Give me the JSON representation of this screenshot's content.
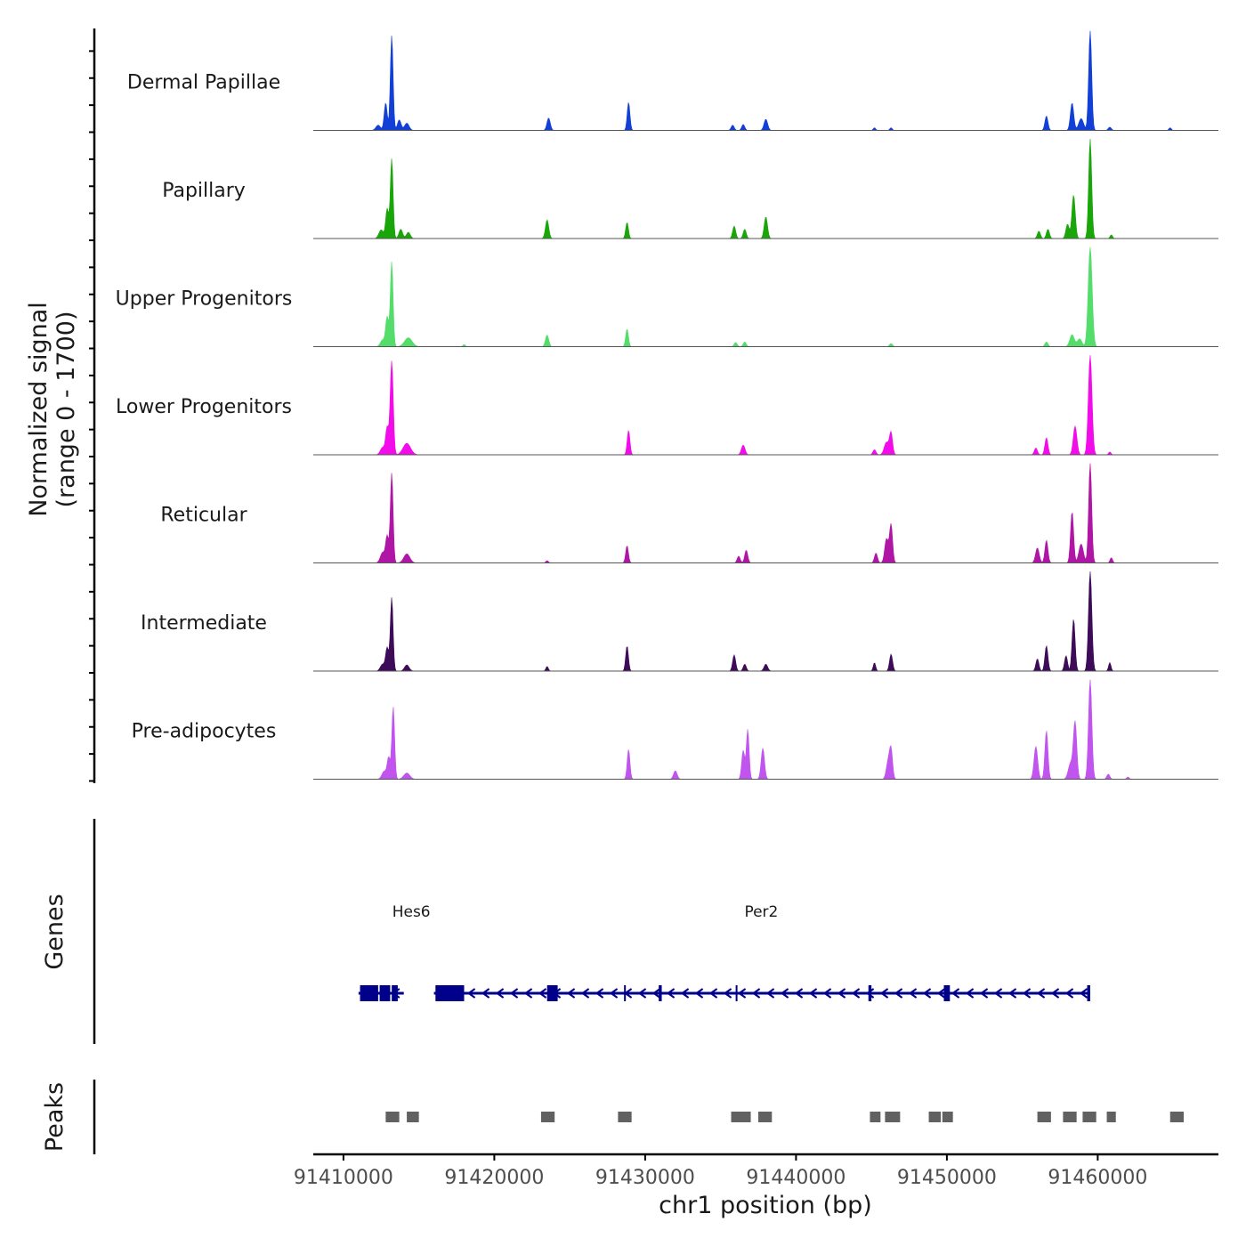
{
  "chart_data": {
    "type": "area",
    "title": "",
    "ylabel_line1": "Normalized signal",
    "ylabel_line2": "(range 0 - 1700)",
    "ylim": [
      0,
      1700
    ],
    "xlabel": "chr1 position (bp)",
    "xlim": [
      91408000,
      91468000
    ],
    "x_ticks": [
      91410000,
      91420000,
      91430000,
      91440000,
      91450000,
      91460000
    ],
    "x_tick_labels": [
      "91410000",
      "91420000",
      "91430000",
      "91440000",
      "91450000",
      "91460000"
    ],
    "tracks": [
      {
        "name": "Dermal Papillae",
        "color": "#1240D6",
        "peaks": [
          [
            91412300,
            80,
            150
          ],
          [
            91412800,
            420,
            100
          ],
          [
            91413200,
            1450,
            90
          ],
          [
            91413700,
            160,
            120
          ],
          [
            91414200,
            110,
            150
          ],
          [
            91423600,
            190,
            110
          ],
          [
            91428900,
            430,
            90
          ],
          [
            91435800,
            80,
            100
          ],
          [
            91436500,
            90,
            100
          ],
          [
            91438000,
            170,
            120
          ],
          [
            91445200,
            40,
            80
          ],
          [
            91446300,
            40,
            80
          ],
          [
            91456600,
            220,
            100
          ],
          [
            91458300,
            420,
            110
          ],
          [
            91458900,
            180,
            160
          ],
          [
            91459500,
            1520,
            100
          ],
          [
            91460800,
            50,
            100
          ],
          [
            91464800,
            40,
            80
          ]
        ]
      },
      {
        "name": "Papillary",
        "color": "#1AA50B",
        "peaks": [
          [
            91412500,
            140,
            150
          ],
          [
            91412900,
            480,
            100
          ],
          [
            91413200,
            1280,
            90
          ],
          [
            91413800,
            150,
            120
          ],
          [
            91414300,
            100,
            130
          ],
          [
            91423500,
            300,
            110
          ],
          [
            91428800,
            260,
            90
          ],
          [
            91435900,
            200,
            100
          ],
          [
            91436600,
            150,
            100
          ],
          [
            91438000,
            350,
            110
          ],
          [
            91456100,
            120,
            100
          ],
          [
            91456700,
            150,
            100
          ],
          [
            91458000,
            230,
            110
          ],
          [
            91458400,
            700,
            110
          ],
          [
            91459500,
            1600,
            100
          ],
          [
            91460900,
            60,
            80
          ]
        ]
      },
      {
        "name": "Upper Progenitors",
        "color": "#55DD6B",
        "peaks": [
          [
            91412600,
            130,
            150
          ],
          [
            91412900,
            560,
            100
          ],
          [
            91413200,
            1620,
            90
          ],
          [
            91414300,
            170,
            250
          ],
          [
            91418000,
            40,
            80
          ],
          [
            91423500,
            220,
            110
          ],
          [
            91428800,
            340,
            90
          ],
          [
            91436000,
            80,
            100
          ],
          [
            91436600,
            90,
            100
          ],
          [
            91446300,
            60,
            100
          ],
          [
            91456600,
            90,
            100
          ],
          [
            91458300,
            230,
            150
          ],
          [
            91458800,
            150,
            150
          ],
          [
            91459500,
            1900,
            130
          ]
        ]
      },
      {
        "name": "Lower Progenitors",
        "color": "#F20CEA",
        "peaks": [
          [
            91412600,
            130,
            150
          ],
          [
            91412900,
            470,
            100
          ],
          [
            91413200,
            1640,
            100
          ],
          [
            91414200,
            200,
            250
          ],
          [
            91428900,
            430,
            90
          ],
          [
            91436500,
            170,
            120
          ],
          [
            91445200,
            90,
            100
          ],
          [
            91446000,
            220,
            150
          ],
          [
            91446300,
            380,
            100
          ],
          [
            91455900,
            120,
            100
          ],
          [
            91456600,
            300,
            100
          ],
          [
            91458500,
            500,
            120
          ],
          [
            91459500,
            1740,
            120
          ],
          [
            91460800,
            50,
            80
          ]
        ]
      },
      {
        "name": "Reticular",
        "color": "#B016A6",
        "peaks": [
          [
            91412600,
            140,
            150
          ],
          [
            91412900,
            350,
            100
          ],
          [
            91413200,
            1190,
            90
          ],
          [
            91414200,
            120,
            200
          ],
          [
            91423500,
            30,
            80
          ],
          [
            91428800,
            230,
            90
          ],
          [
            91436200,
            90,
            100
          ],
          [
            91436700,
            170,
            100
          ],
          [
            91445300,
            130,
            100
          ],
          [
            91446000,
            320,
            120
          ],
          [
            91446300,
            510,
            100
          ],
          [
            91456000,
            200,
            120
          ],
          [
            91456600,
            300,
            100
          ],
          [
            91458300,
            680,
            100
          ],
          [
            91458900,
            250,
            150
          ],
          [
            91459500,
            1320,
            100
          ],
          [
            91460900,
            70,
            80
          ]
        ]
      },
      {
        "name": "Intermediate",
        "color": "#3E0B58",
        "peaks": [
          [
            91412600,
            90,
            150
          ],
          [
            91412900,
            300,
            100
          ],
          [
            91413200,
            960,
            90
          ],
          [
            91414200,
            80,
            150
          ],
          [
            91423500,
            60,
            80
          ],
          [
            91428800,
            330,
            90
          ],
          [
            91435900,
            210,
            100
          ],
          [
            91436600,
            90,
            100
          ],
          [
            91438000,
            90,
            120
          ],
          [
            91445200,
            110,
            80
          ],
          [
            91446300,
            220,
            100
          ],
          [
            91456000,
            160,
            100
          ],
          [
            91456600,
            330,
            100
          ],
          [
            91457900,
            200,
            100
          ],
          [
            91458400,
            680,
            100
          ],
          [
            91459500,
            1300,
            110
          ],
          [
            91460800,
            110,
            80
          ]
        ]
      },
      {
        "name": "Pre-adipocytes",
        "color": "#C154EE",
        "peaks": [
          [
            91412700,
            140,
            150
          ],
          [
            91413000,
            380,
            100
          ],
          [
            91413300,
            1280,
            90
          ],
          [
            91414200,
            110,
            200
          ],
          [
            91428900,
            530,
            90
          ],
          [
            91432000,
            150,
            120
          ],
          [
            91436500,
            510,
            100
          ],
          [
            91436800,
            880,
            90
          ],
          [
            91437800,
            550,
            110
          ],
          [
            91446100,
            300,
            120
          ],
          [
            91446300,
            510,
            100
          ],
          [
            91455900,
            580,
            120
          ],
          [
            91456600,
            860,
            100
          ],
          [
            91458200,
            280,
            150
          ],
          [
            91458500,
            1000,
            110
          ],
          [
            91459500,
            1760,
            110
          ],
          [
            91460700,
            90,
            100
          ],
          [
            91462000,
            40,
            80
          ]
        ]
      }
    ],
    "genes_label": "Genes",
    "genes": [
      {
        "name": "Hes6",
        "label_x": 91414500,
        "strand": "-",
        "start": 91411000,
        "end": 91414000,
        "exons": [
          [
            91411100,
            91412300
          ],
          [
            91412400,
            91413100
          ],
          [
            91413200,
            91413600
          ]
        ]
      },
      {
        "name": "Per2",
        "label_x": 91437700,
        "strand": "-",
        "start": 91416000,
        "end": 91459500,
        "exons": [
          [
            91416100,
            91418000
          ],
          [
            91423500,
            91424200
          ],
          [
            91428600,
            91428700
          ],
          [
            91430900,
            91431100
          ],
          [
            91436000,
            91436100
          ],
          [
            91444800,
            91445000
          ],
          [
            91449800,
            91450200
          ],
          [
            91459300,
            91459500
          ]
        ]
      }
    ],
    "peaks_label": "Peaks",
    "peak_regions": [
      [
        91412800,
        91413700
      ],
      [
        91414200,
        91415000
      ],
      [
        91423100,
        91424000
      ],
      [
        91428200,
        91429100
      ],
      [
        91435700,
        91437000
      ],
      [
        91437500,
        91438400
      ],
      [
        91444900,
        91445600
      ],
      [
        91445900,
        91446900
      ],
      [
        91448800,
        91449600
      ],
      [
        91449700,
        91450400
      ],
      [
        91456000,
        91456900
      ],
      [
        91457700,
        91458600
      ],
      [
        91459000,
        91459900
      ],
      [
        91460600,
        91461200
      ],
      [
        91464800,
        91465700
      ]
    ]
  }
}
